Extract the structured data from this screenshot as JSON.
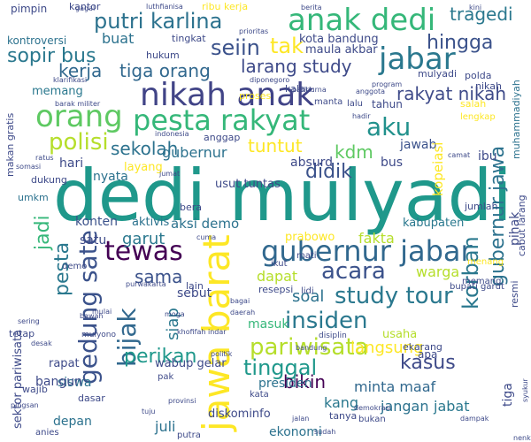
{
  "words": [
    {
      "text": "dedi mulyadi",
      "size": 80,
      "color": "#1f988b",
      "rot": 0
    },
    {
      "text": "nikah anak",
      "size": 36,
      "color": "#414487",
      "rot": 0
    },
    {
      "text": "jawa barat",
      "size": 42,
      "color": "#fde725",
      "rot": -90
    },
    {
      "text": "anak dedi",
      "size": 34,
      "color": "#35b779",
      "rot": 0
    },
    {
      "text": "jabar",
      "size": 34,
      "color": "#2a788e",
      "rot": 0
    },
    {
      "text": "pesta rakyat",
      "size": 32,
      "color": "#35b779",
      "rot": 0
    },
    {
      "text": "gubernur jabar",
      "size": 32,
      "color": "#31688e",
      "rot": 0
    },
    {
      "text": "tewas",
      "size": 30,
      "color": "#440154",
      "rot": 0
    },
    {
      "text": "putri karlina",
      "size": 24,
      "color": "#2c728e",
      "rot": 0
    },
    {
      "text": "orang",
      "size": 34,
      "color": "#5ec962",
      "rot": 0
    },
    {
      "text": "aku",
      "size": 28,
      "color": "#21918c",
      "rot": 0
    },
    {
      "text": "polisi",
      "size": 26,
      "color": "#b5de2b",
      "rot": 0
    },
    {
      "text": "study tour",
      "size": 26,
      "color": "#2a788e",
      "rot": 0
    },
    {
      "text": "gedung sate",
      "size": 28,
      "color": "#3b528b",
      "rot": -90
    },
    {
      "text": "bijak",
      "size": 28,
      "color": "#31688e",
      "rot": -90
    },
    {
      "text": "pariwisata",
      "size": 26,
      "color": "#b5de2b",
      "rot": 0
    },
    {
      "text": "insiden",
      "size": 26,
      "color": "#2a788e",
      "rot": 0
    },
    {
      "text": "tinggal",
      "size": 24,
      "color": "#1f988b",
      "rot": 0
    },
    {
      "text": "sopir bus",
      "size": 22,
      "color": "#2a788e",
      "rot": 0
    },
    {
      "text": "kerja",
      "size": 20,
      "color": "#31688e",
      "rot": 0
    },
    {
      "text": "tiga orang",
      "size": 20,
      "color": "#31688e",
      "rot": 0
    },
    {
      "text": "tragedi",
      "size": 20,
      "color": "#2a788e",
      "rot": 0
    },
    {
      "text": "hingga",
      "size": 22,
      "color": "#3b528b",
      "rot": 0
    },
    {
      "text": "larang study",
      "size": 20,
      "color": "#3e4a89",
      "rot": 0
    },
    {
      "text": "rakyat nikah",
      "size": 20,
      "color": "#3e4a89",
      "rot": 0
    },
    {
      "text": "seiin",
      "size": 24,
      "color": "#3b528b",
      "rot": 0
    },
    {
      "text": "tak",
      "size": 24,
      "color": "#fde725",
      "rot": 0
    },
    {
      "text": "buat",
      "size": 16,
      "color": "#2c728e",
      "rot": 0
    },
    {
      "text": "sekolah",
      "size": 20,
      "color": "#2c728e",
      "rot": 0
    },
    {
      "text": "tuntut",
      "size": 20,
      "color": "#fde725",
      "rot": 0
    },
    {
      "text": "kdm",
      "size": 20,
      "color": "#5ec962",
      "rot": 0
    },
    {
      "text": "didik",
      "size": 22,
      "color": "#3b528b",
      "rot": 0
    },
    {
      "text": "korban",
      "size": 24,
      "color": "#2a788e",
      "rot": -90
    },
    {
      "text": "gubernur jawa",
      "size": 22,
      "color": "#2c728e",
      "rot": -90
    },
    {
      "text": "pesta",
      "size": 22,
      "color": "#2a788e",
      "rot": -90
    },
    {
      "text": "jadi",
      "size": 22,
      "color": "#35b779",
      "rot": -90
    },
    {
      "text": "acara",
      "size": 26,
      "color": "#3b528b",
      "rot": 0
    },
    {
      "text": "kasus",
      "size": 22,
      "color": "#3e4a89",
      "rot": 0
    },
    {
      "text": "bikin",
      "size": 20,
      "color": "#440154",
      "rot": 0
    },
    {
      "text": "perikan",
      "size": 22,
      "color": "#1f988b",
      "rot": 0
    },
    {
      "text": "langsung",
      "size": 18,
      "color": "#fde725",
      "rot": 0
    },
    {
      "text": "sama",
      "size": 20,
      "color": "#3b528b",
      "rot": 0
    },
    {
      "text": "garut",
      "size": 18,
      "color": "#2a788e",
      "rot": 0
    },
    {
      "text": "fakta",
      "size": 16,
      "color": "#b5de2b",
      "rot": 0
    },
    {
      "text": "warga",
      "size": 16,
      "color": "#b5de2b",
      "rot": 0
    },
    {
      "text": "jabat",
      "size": 16,
      "color": "#2a788e",
      "rot": 0
    },
    {
      "text": "minta maaf",
      "size": 16,
      "color": "#31688e",
      "rot": 0
    },
    {
      "text": "jangan",
      "size": 16,
      "color": "#2c728e",
      "rot": 0
    },
    {
      "text": "ekonomi",
      "size": 14,
      "color": "#2c728e",
      "rot": 0
    },
    {
      "text": "presiden",
      "size": 14,
      "color": "#2c728e",
      "rot": 0
    },
    {
      "text": "kang",
      "size": 16,
      "color": "#2a788e",
      "rot": 0
    },
    {
      "text": "siswa",
      "size": 14,
      "color": "#2c728e",
      "rot": 0
    },
    {
      "text": "depan",
      "size": 14,
      "color": "#2c728e",
      "rot": 0
    },
    {
      "text": "juli",
      "size": 16,
      "color": "#2c728e",
      "rot": 0
    },
    {
      "text": "soal",
      "size": 18,
      "color": "#2c728e",
      "rot": 0
    },
    {
      "text": "dapat",
      "size": 16,
      "color": "#b5de2b",
      "rot": 0
    },
    {
      "text": "masuk",
      "size": 14,
      "color": "#35b779",
      "rot": 0
    },
    {
      "text": "gubernur",
      "size": 16,
      "color": "#2c728e",
      "rot": 0
    },
    {
      "text": "absurd",
      "size": 14,
      "color": "#3e4a89",
      "rot": 0
    },
    {
      "text": "jawab",
      "size": 14,
      "color": "#3b528b",
      "rot": 0
    },
    {
      "text": "kabupaten",
      "size": 13,
      "color": "#2a788e",
      "rot": 0
    },
    {
      "text": "prabowo",
      "size": 13,
      "color": "#fde725",
      "rot": 0
    },
    {
      "text": "aksi demo",
      "size": 15,
      "color": "#2c728e",
      "rot": 0
    },
    {
      "text": "konten",
      "size": 14,
      "color": "#3b528b",
      "rot": 0
    },
    {
      "text": "aktivis",
      "size": 13,
      "color": "#2c728e",
      "rot": 0
    },
    {
      "text": "satu",
      "size": 14,
      "color": "#3e4a89",
      "rot": 0
    },
    {
      "text": "usut tuntas",
      "size": 13,
      "color": "#3e4a89",
      "rot": 0
    },
    {
      "text": "hari",
      "size": 14,
      "color": "#3e4a89",
      "rot": 0
    },
    {
      "text": "nyata",
      "size": 14,
      "color": "#2c728e",
      "rot": 0
    },
    {
      "text": "layang",
      "size": 13,
      "color": "#fde725",
      "rot": 0
    },
    {
      "text": "bus",
      "size": 14,
      "color": "#3e4a89",
      "rot": 0
    },
    {
      "text": "kota bandung",
      "size": 13,
      "color": "#3e4a89",
      "rot": 0
    },
    {
      "text": "maula akbar",
      "size": 13,
      "color": "#3e4a89",
      "rot": 0
    },
    {
      "text": "sebut",
      "size": 14,
      "color": "#3e4a89",
      "rot": 0
    },
    {
      "text": "siap",
      "size": 18,
      "color": "#2a788e",
      "rot": -90
    },
    {
      "text": "wabup gelar",
      "size": 13,
      "color": "#3e4a89",
      "rot": 0
    },
    {
      "text": "bangun",
      "size": 14,
      "color": "#3e4a89",
      "rot": 0
    },
    {
      "text": "rapat",
      "size": 13,
      "color": "#3e4a89",
      "rot": 0
    },
    {
      "text": "sektor pariwisata",
      "size": 13,
      "color": "#3e4a89",
      "rot": -90
    },
    {
      "text": "diskominfo",
      "size": 13,
      "color": "#3e4a89",
      "rot": 0
    },
    {
      "text": "usaha",
      "size": 13,
      "color": "#b5de2b",
      "rot": 0
    },
    {
      "text": "ekarang",
      "size": 11,
      "color": "#3e4a89",
      "rot": 0
    },
    {
      "text": "lengkap",
      "size": 10,
      "color": "#fde725",
      "rot": 0
    },
    {
      "text": "muhammadiyah",
      "size": 11,
      "color": "#2c728e",
      "rot": -90
    },
    {
      "text": "kopeiasi",
      "size": 15,
      "color": "#fde725",
      "rot": -90
    },
    {
      "text": "ibu",
      "size": 14,
      "color": "#3e4a89",
      "rot": 0
    },
    {
      "text": "salah",
      "size": 11,
      "color": "#fde725",
      "rot": 0
    },
    {
      "text": "tahun",
      "size": 12,
      "color": "#3e4a89",
      "rot": 0
    },
    {
      "text": "pihak",
      "size": 14,
      "color": "#3e4a89",
      "rot": -90
    },
    {
      "text": "cabut larang",
      "size": 11,
      "color": "#3e4a89",
      "rot": -90
    },
    {
      "text": "resmi",
      "size": 11,
      "color": "#3e4a89",
      "rot": -90
    },
    {
      "text": "tiga",
      "size": 14,
      "color": "#3e4a89",
      "rot": -90
    },
    {
      "text": "dukung",
      "size": 11,
      "color": "#3e4a89",
      "rot": 0
    },
    {
      "text": "umkm",
      "size": 11,
      "color": "#2c728e",
      "rot": 0
    },
    {
      "text": "memang",
      "size": 13,
      "color": "#2a788e",
      "rot": 0
    },
    {
      "text": "kontroversi",
      "size": 12,
      "color": "#2c728e",
      "rot": 0
    },
    {
      "text": "pimpin",
      "size": 12,
      "color": "#3e4a89",
      "rot": 0
    },
    {
      "text": "kantor",
      "size": 11,
      "color": "#3e4a89",
      "rot": 0
    },
    {
      "text": "ribu kerja",
      "size": 11,
      "color": "#fde725",
      "rot": 0
    },
    {
      "text": "tingkat",
      "size": 11,
      "color": "#3e4a89",
      "rot": 0
    },
    {
      "text": "hukum",
      "size": 11,
      "color": "#3e4a89",
      "rot": 0
    },
    {
      "text": "kalau",
      "size": 11,
      "color": "#3e4a89",
      "rot": 0
    },
    {
      "text": "proses",
      "size": 11,
      "color": "#fde725",
      "rot": 0
    },
    {
      "text": "mulyadi",
      "size": 11,
      "color": "#3e4a89",
      "rot": 0
    },
    {
      "text": "polda",
      "size": 11,
      "color": "#3e4a89",
      "rot": 0
    },
    {
      "text": "manta",
      "size": 10,
      "color": "#3e4a89",
      "rot": 0
    },
    {
      "text": "lalu",
      "size": 10,
      "color": "#3e4a89",
      "rot": 0
    },
    {
      "text": "nikah",
      "size": 11,
      "color": "#3e4a89",
      "rot": 0
    },
    {
      "text": "makan gratis",
      "size": 11,
      "color": "#3e4a89",
      "rot": -90
    },
    {
      "text": "bupati garut",
      "size": 10,
      "color": "#3e4a89",
      "rot": 0
    },
    {
      "text": "lain",
      "size": 11,
      "color": "#3e4a89",
      "rot": 0
    },
    {
      "text": "resepsi",
      "size": 11,
      "color": "#3e4a89",
      "rot": 0
    },
    {
      "text": "lidi",
      "size": 10,
      "color": "#3e4a89",
      "rot": 0
    },
    {
      "text": "mati",
      "size": 10,
      "color": "#3e4a89",
      "rot": 0
    },
    {
      "text": "ikut",
      "size": 10,
      "color": "#3e4a89",
      "rot": 0
    },
    {
      "text": "menang",
      "size": 10,
      "color": "#fde725",
      "rot": 0
    },
    {
      "text": "jumlah",
      "size": 11,
      "color": "#3e4a89",
      "rot": 0
    },
    {
      "text": "bera",
      "size": 11,
      "color": "#3e4a89",
      "rot": 0
    },
    {
      "text": "anggap",
      "size": 11,
      "color": "#3e4a89",
      "rot": 0
    },
    {
      "text": "demo",
      "size": 10,
      "color": "#3e4a89",
      "rot": 0
    },
    {
      "text": "tetap",
      "size": 11,
      "color": "#3e4a89",
      "rot": 0
    },
    {
      "text": "wajib",
      "size": 11,
      "color": "#3e4a89",
      "rot": 0
    },
    {
      "text": "dasar",
      "size": 11,
      "color": "#3e4a89",
      "rot": 0
    },
    {
      "text": "pak",
      "size": 10,
      "color": "#3e4a89",
      "rot": 0
    },
    {
      "text": "kata",
      "size": 10,
      "color": "#3e4a89",
      "rot": 0
    },
    {
      "text": "apa",
      "size": 12,
      "color": "#3e4a89",
      "rot": 0
    },
    {
      "text": "tanya",
      "size": 11,
      "color": "#3e4a89",
      "rot": 0
    },
    {
      "text": "anies",
      "size": 10,
      "color": "#3e4a89",
      "rot": 0
    },
    {
      "text": "putra",
      "size": 10,
      "color": "#3e4a89",
      "rot": 0
    },
    {
      "text": "bukan",
      "size": 10,
      "color": "#3e4a89",
      "rot": 0
    },
    {
      "text": "memang",
      "size": 10,
      "color": "#3e4a89",
      "rot": 0
    },
    {
      "text": "mulyono",
      "size": 9,
      "color": "#3e4a89",
      "rot": 0
    },
    {
      "text": "disiplin",
      "size": 9,
      "color": "#3e4a89",
      "rot": 0
    },
    {
      "text": "bandung",
      "size": 8,
      "color": "#3e4a89",
      "rot": 0
    },
    {
      "text": "berita",
      "size": 8,
      "color": "#3e4a89",
      "rot": 0
    },
    {
      "text": "kini",
      "size": 8,
      "color": "#3e4a89",
      "rot": 0
    },
    {
      "text": "paripurna",
      "size": 8,
      "color": "#3e4a89",
      "rot": 0
    },
    {
      "text": "luthfianisa",
      "size": 8,
      "color": "#3e4a89",
      "rot": 0
    },
    {
      "text": "anggota",
      "size": 8,
      "color": "#3e4a89",
      "rot": 0
    },
    {
      "text": "camat",
      "size": 8,
      "color": "#3e4a89",
      "rot": 0
    },
    {
      "text": "program",
      "size": 8,
      "color": "#3e4a89",
      "rot": 0
    },
    {
      "text": "gagal",
      "size": 8,
      "color": "#3e4a89",
      "rot": 0
    },
    {
      "text": "barak militer",
      "size": 8,
      "color": "#3e4a89",
      "rot": 0
    },
    {
      "text": "klarifikasi",
      "size": 8,
      "color": "#3e4a89",
      "rot": 0
    },
    {
      "text": "ratus",
      "size": 8,
      "color": "#3e4a89",
      "rot": 0
    },
    {
      "text": "somasi",
      "size": 8,
      "color": "#3e4a89",
      "rot": 0
    },
    {
      "text": "jumat",
      "size": 8,
      "color": "#3e4a89",
      "rot": 0
    },
    {
      "text": "indonesia",
      "size": 8,
      "color": "#3e4a89",
      "rot": 0
    },
    {
      "text": "hadir",
      "size": 8,
      "color": "#3e4a89",
      "rot": 0
    },
    {
      "text": "diponegoro",
      "size": 8,
      "color": "#3e4a89",
      "rot": 0
    },
    {
      "text": "prioritas",
      "size": 8,
      "color": "#3e4a89",
      "rot": 0
    },
    {
      "text": "bagai",
      "size": 8,
      "color": "#3e4a89",
      "rot": 0
    },
    {
      "text": "daerah",
      "size": 8,
      "color": "#3e4a89",
      "rot": 0
    },
    {
      "text": "politik",
      "size": 8,
      "color": "#3e4a89",
      "rot": 0
    },
    {
      "text": "khofifah indar",
      "size": 8,
      "color": "#3e4a89",
      "rot": 0
    },
    {
      "text": "purwakarta",
      "size": 8,
      "color": "#3e4a89",
      "rot": 0
    },
    {
      "text": "demokrasi",
      "size": 8,
      "color": "#3e4a89",
      "rot": 0
    },
    {
      "text": "sering",
      "size": 8,
      "color": "#3e4a89",
      "rot": 0
    },
    {
      "text": "bawah",
      "size": 8,
      "color": "#3e4a89",
      "rot": 0
    },
    {
      "text": "desak",
      "size": 8,
      "color": "#3e4a89",
      "rot": 0
    },
    {
      "text": "pingsan",
      "size": 8,
      "color": "#3e4a89",
      "rot": 0
    },
    {
      "text": "moga",
      "size": 8,
      "color": "#3e4a89",
      "rot": 0
    },
    {
      "text": "mulai",
      "size": 8,
      "color": "#3e4a89",
      "rot": 0
    },
    {
      "text": "cuma",
      "size": 8,
      "color": "#3e4a89",
      "rot": 0
    },
    {
      "text": "dampak",
      "size": 8,
      "color": "#3e4a89",
      "rot": 0
    },
    {
      "text": "jalan",
      "size": 8,
      "color": "#3e4a89",
      "rot": 0
    },
    {
      "text": "tuju",
      "size": 8,
      "color": "#3e4a89",
      "rot": 0
    },
    {
      "text": "sudah",
      "size": 8,
      "color": "#3e4a89",
      "rot": 0
    },
    {
      "text": "nenk",
      "size": 8,
      "color": "#3e4a89",
      "rot": 0
    },
    {
      "text": "provinsi",
      "size": 8,
      "color": "#3e4a89",
      "rot": 0
    },
    {
      "text": "syukur",
      "size": 8,
      "color": "#3e4a89",
      "rot": -90
    }
  ]
}
